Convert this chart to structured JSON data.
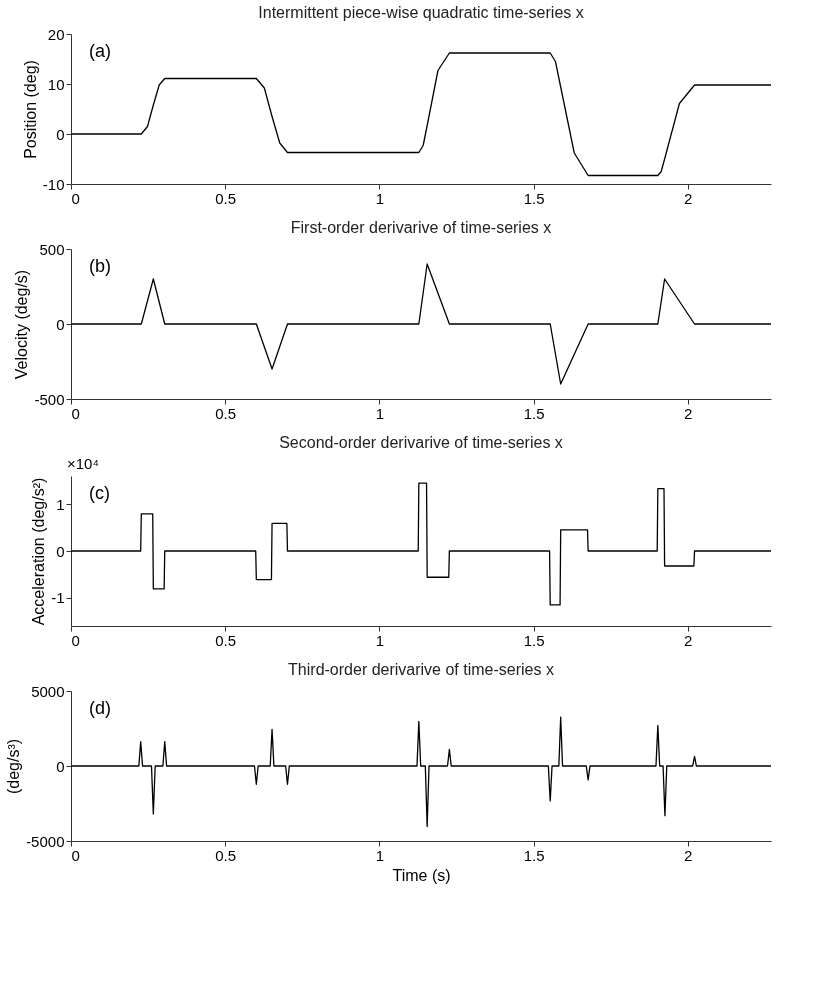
{
  "chart_data": [
    {
      "type": "line",
      "title": "Intermittent piece-wise quadratic time-series x",
      "ylabel": "Position (deg)",
      "annotations": [
        "(a)"
      ],
      "xlim": [
        0,
        2.27
      ],
      "xticks": [
        0,
        0.5,
        1,
        1.5,
        2
      ],
      "ylim": [
        -10,
        20
      ],
      "yticks": [
        -10,
        0,
        10,
        20
      ],
      "line_style": "solid",
      "series": [
        {
          "color": "#000000",
          "x": [
            0,
            0.228,
            0.248,
            0.267,
            0.286,
            0.304,
            0.601,
            0.627,
            0.652,
            0.677,
            0.702,
            1.128,
            1.142,
            1.155,
            1.19,
            1.227,
            1.554,
            1.571,
            1.588,
            1.632,
            1.677,
            1.903,
            1.914,
            1.925,
            1.973,
            2.022,
            2.27
          ],
          "values": [
            0,
            0,
            1.5,
            5.8,
            9.8,
            11.1,
            11.1,
            9.2,
            3.5,
            -1.8,
            -3.7,
            -3.7,
            -2.3,
            1.7,
            12.7,
            16.2,
            16.2,
            14.5,
            9.4,
            -3.8,
            -8.3,
            -8.3,
            -7.5,
            -5.0,
            6.1,
            9.8,
            9.8
          ]
        }
      ]
    },
    {
      "type": "line",
      "title": "First-order derivarive of time-series x",
      "ylabel": "Velocity (deg/s)",
      "annotations": [
        "(b)"
      ],
      "xlim": [
        0,
        2.27
      ],
      "xticks": [
        0,
        0.5,
        1,
        1.5,
        2
      ],
      "ylim": [
        -500,
        500
      ],
      "yticks": [
        -500,
        0,
        500
      ],
      "line_style": "solid",
      "series": [
        {
          "color": "#000000",
          "x": [
            0,
            0.228,
            0.267,
            0.304,
            0.601,
            0.652,
            0.702,
            1.128,
            1.155,
            1.227,
            1.554,
            1.588,
            1.677,
            1.903,
            1.925,
            2.022,
            2.27
          ],
          "values": [
            0,
            0,
            300,
            0,
            0,
            -300,
            0,
            0,
            400,
            0,
            0,
            -400,
            0,
            0,
            300,
            0,
            0
          ]
        }
      ]
    },
    {
      "type": "line",
      "title": "Second-order derivarive of time-series x",
      "ylabel": "Acceleration (deg/s²)",
      "annotations": [
        "(c)",
        "×10⁴"
      ],
      "xlim": [
        0,
        2.27
      ],
      "xticks": [
        0,
        0.5,
        1,
        1.5,
        2
      ],
      "ylim": [
        -1.6,
        1.6
      ],
      "yticks": [
        -1,
        0,
        1
      ],
      "line_style": "solid",
      "series": [
        {
          "color": "#000000",
          "x": [
            0,
            0.226,
            0.228,
            0.265,
            0.267,
            0.302,
            0.304,
            0.599,
            0.601,
            0.65,
            0.652,
            0.7,
            0.702,
            1.126,
            1.128,
            1.153,
            1.155,
            1.225,
            1.227,
            1.552,
            1.554,
            1.586,
            1.588,
            1.675,
            1.677,
            1.901,
            1.903,
            1.923,
            1.925,
            2.02,
            2.022,
            2.27
          ],
          "values": [
            0,
            0,
            0.79,
            0.79,
            -0.81,
            -0.81,
            0,
            0,
            -0.61,
            -0.61,
            0.59,
            0.59,
            0,
            0,
            1.45,
            1.45,
            -0.56,
            -0.56,
            0,
            0,
            -1.15,
            -1.15,
            0.45,
            0.45,
            0,
            0,
            1.33,
            1.33,
            -0.32,
            -0.32,
            0,
            0
          ]
        }
      ]
    },
    {
      "type": "line",
      "title": "Third-order derivarive of time-series x",
      "xlabel": "Time (s)",
      "ylabel": "(deg/s³)",
      "annotations": [
        "(d)"
      ],
      "xlim": [
        0,
        2.27
      ],
      "xticks": [
        0,
        0.5,
        1,
        1.5,
        2
      ],
      "ylim": [
        -5000,
        5000
      ],
      "yticks": [
        -5000,
        0,
        5000
      ],
      "line_style": "solid",
      "series": [
        {
          "color": "#000000",
          "x": [
            0,
            0.22,
            0.226,
            0.232,
            0.261,
            0.267,
            0.273,
            0.298,
            0.304,
            0.31,
            0.595,
            0.601,
            0.607,
            0.646,
            0.652,
            0.658,
            0.696,
            0.702,
            0.708,
            1.122,
            1.128,
            1.134,
            1.149,
            1.155,
            1.161,
            1.221,
            1.227,
            1.233,
            1.548,
            1.554,
            1.56,
            1.582,
            1.588,
            1.594,
            1.671,
            1.677,
            1.683,
            1.897,
            1.903,
            1.909,
            1.92,
            1.926,
            1.932,
            2.016,
            2.022,
            2.028,
            2.27
          ],
          "values": [
            0,
            0,
            1630,
            0,
            0,
            -3200,
            0,
            0,
            1630,
            0,
            0,
            -1220,
            0,
            0,
            2440,
            0,
            0,
            -1220,
            0,
            0,
            2970,
            0,
            0,
            -4040,
            0,
            0,
            1100,
            0,
            0,
            -2330,
            0,
            0,
            3260,
            0,
            0,
            -930,
            0,
            0,
            2700,
            0,
            0,
            -3310,
            0,
            0,
            640,
            0,
            0
          ]
        }
      ]
    }
  ]
}
